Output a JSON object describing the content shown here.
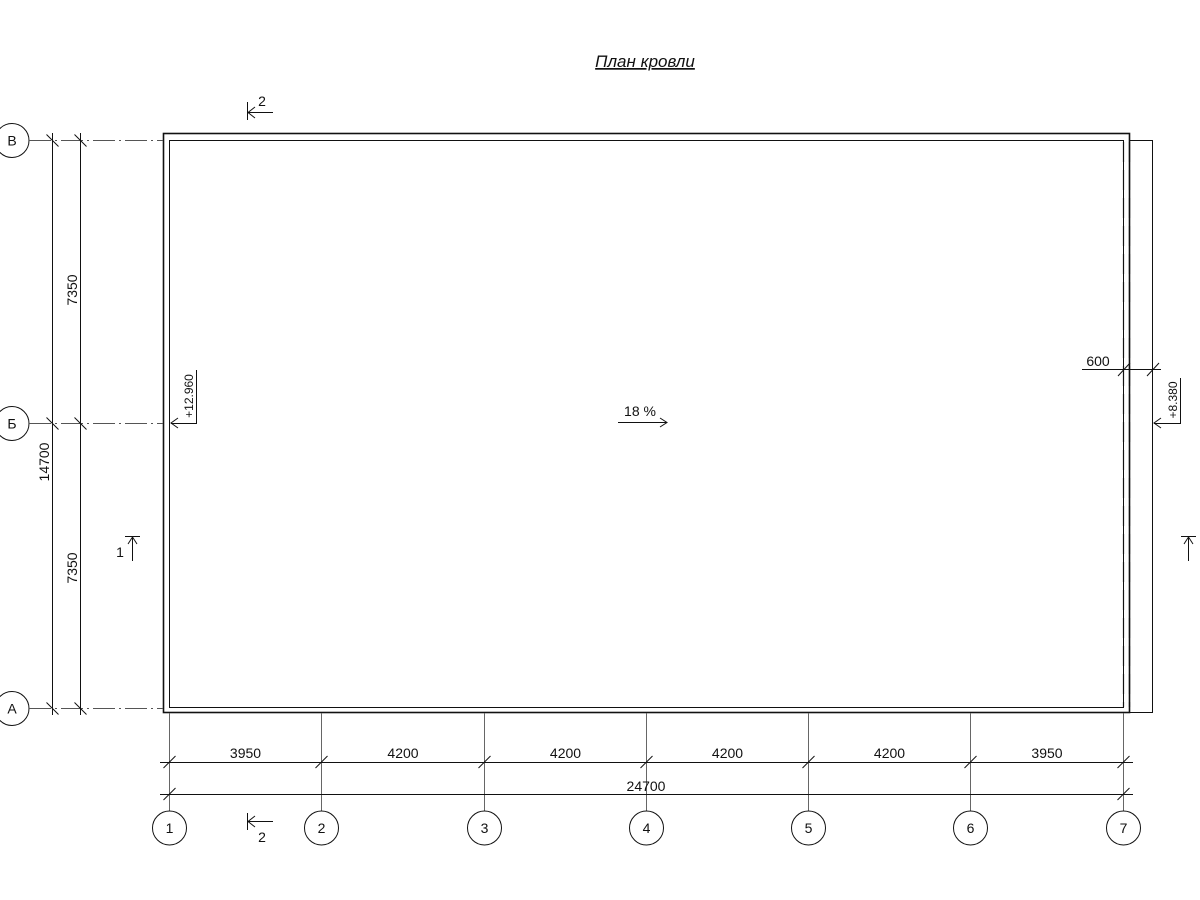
{
  "title": "План кровли",
  "slope_label": "18 %",
  "columns": [
    {
      "label": "1"
    },
    {
      "label": "2"
    },
    {
      "label": "3"
    },
    {
      "label": "4"
    },
    {
      "label": "5"
    },
    {
      "label": "6"
    },
    {
      "label": "7"
    }
  ],
  "rows": [
    {
      "label": "В"
    },
    {
      "label": "Б"
    },
    {
      "label": "А"
    }
  ],
  "horizontal_dimensions": [
    "3950",
    "4200",
    "4200",
    "4200",
    "4200",
    "3950"
  ],
  "horizontal_total": "24700",
  "vertical_dimensions": [
    "7350",
    "7350"
  ],
  "vertical_total": "14700",
  "overhang_dimension": "600",
  "elevations": {
    "left": "+12.960",
    "right": "+8.380"
  },
  "sections": {
    "section_2": "2",
    "section_1": "1"
  }
}
